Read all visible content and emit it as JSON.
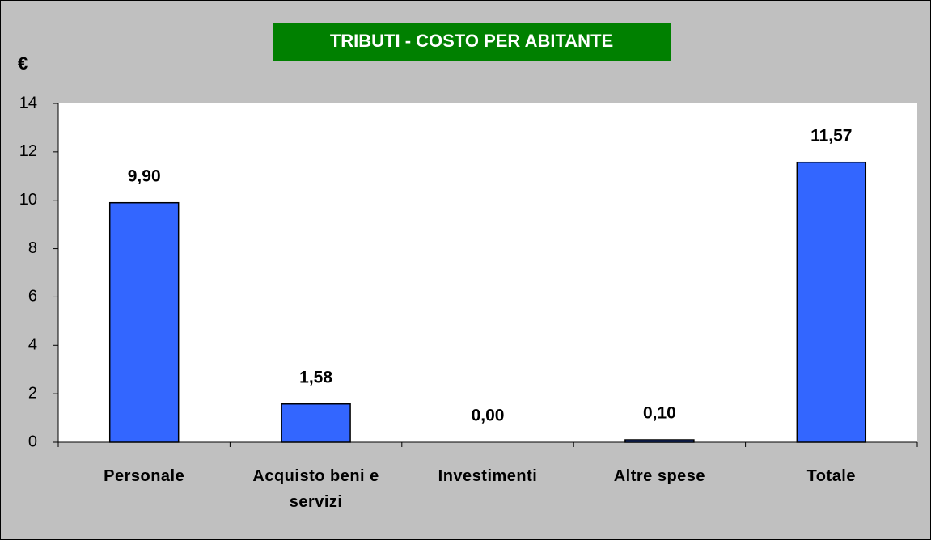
{
  "chart_data": {
    "type": "bar",
    "title": "TRIBUTI - COSTO PER ABITANTE",
    "y_label": "€",
    "categories": [
      "Personale",
      "Acquisto beni e servizi",
      "Investimenti",
      "Altre spese",
      "Totale"
    ],
    "values": [
      9.9,
      1.58,
      0,
      0.1,
      11.57
    ],
    "value_labels": [
      "9,90",
      "1,58",
      "0,00",
      "0,10",
      "11,57"
    ],
    "color": "#3366ff",
    "ylim": [
      0,
      14
    ],
    "yticks": [
      0,
      2,
      4,
      6,
      8,
      10,
      12,
      14
    ],
    "grid": false
  }
}
